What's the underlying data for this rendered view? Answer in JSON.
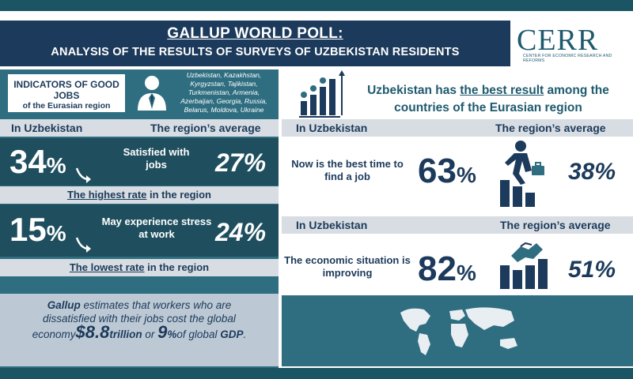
{
  "header": {
    "title": "GALLUP WORLD POLL:",
    "subtitle": "ANALYSIS OF THE RESULTS OF SURVEYS OF UZBEKISTAN RESIDENTS"
  },
  "logo": {
    "word": "CERR",
    "sub": "Center for Economic Research and Reforms"
  },
  "indicators": {
    "title": "INDICATORS OF GOOD JOBS",
    "subtitle": "of the Eurasian region",
    "countries": "Uzbekistan, Kazakhstan, Kyrgyzstan, Tajikistan, Turkmenistan, Armenia, Azerbaijan, Georgia, Russia, Belarus, Moldova, Ukraine"
  },
  "labels": {
    "in_uzbekistan": "In Uzbekistan",
    "region_average": "The region’s average"
  },
  "jobs": {
    "uz_value": "34",
    "pct": "%",
    "text": "Satisfied with jobs",
    "avg_value": "27%",
    "note_underlined": "The highest rate",
    "note_rest": " in the region"
  },
  "stress": {
    "uz_value": "15",
    "pct": "%",
    "text": "May experience stress at work",
    "avg_value": "24%",
    "note_underlined": "The lowest rate",
    "note_rest": " in the region"
  },
  "gallup": {
    "brand": "Gallup",
    "line1": " estimates that workers who are",
    "line2": "dissatisfied with their jobs cost the global",
    "line3a": "economy",
    "currency": "$",
    "amount": "8.8",
    "unit": "trillion",
    "or": " or ",
    "share": "9",
    "share_pct": "%",
    "of": "of global ",
    "gdp": "GDP",
    "end": "."
  },
  "right": {
    "head_a": "Uzbekistan has ",
    "head_u": "the best result",
    "head_b": " among the",
    "head_c": "countries of the Eurasian region",
    "find_job_text": "Now is the best time to find a job",
    "find_job_uz": "63",
    "find_job_avg": "38%",
    "econ_text": "The economic situation is improving",
    "econ_uz": "82",
    "econ_avg": "51%",
    "pct": "%"
  },
  "colors": {
    "navy": "#1c3a5b",
    "teal_dark": "#1f4f5e",
    "teal": "#2f6e80",
    "grey": "#d7dde2"
  }
}
